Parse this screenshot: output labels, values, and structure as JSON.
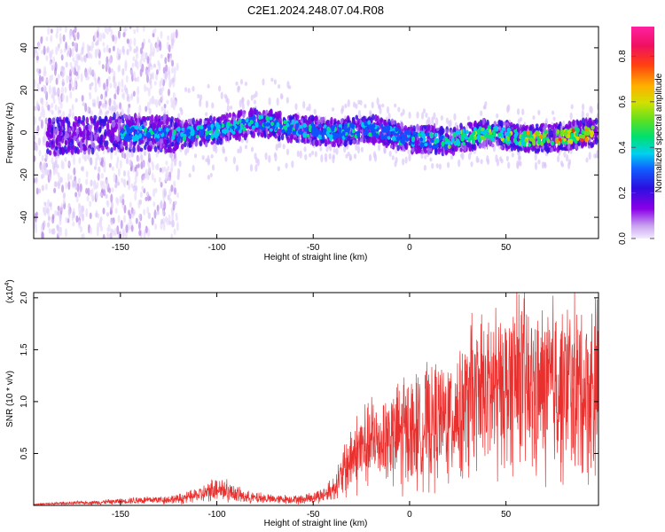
{
  "title": "C2E1.2024.248.07.04.R08",
  "chart_data": [
    {
      "type": "heatmap",
      "title": "C2E1.2024.248.07.04.R08",
      "xlabel": "Height of straight line (km)",
      "ylabel": "Frequency (Hz)",
      "xlim": [
        -195,
        98
      ],
      "ylim": [
        -50,
        50
      ],
      "x_ticks": [
        -150,
        -100,
        -50,
        0,
        50
      ],
      "x_tick_labels": [
        "-150",
        "-100",
        "-50",
        "0",
        "50"
      ],
      "y_ticks": [
        -40,
        -20,
        0,
        20,
        40
      ],
      "y_tick_labels": [
        "-40",
        "-20",
        "0",
        "20",
        "40"
      ],
      "colorbar": {
        "label": "Normalized spectral amplitude",
        "range": [
          0,
          0.93
        ],
        "ticks": [
          0.0,
          0.2,
          0.4,
          0.6,
          0.8
        ],
        "tick_labels": [
          "0.0",
          "0.2",
          "0.4",
          "0.6",
          "0.8"
        ],
        "colormap": "rainbow (white-violet to magenta)"
      },
      "ridge_center_hz": [
        {
          "x": -185,
          "y": -2
        },
        {
          "x": -150,
          "y": 0
        },
        {
          "x": -120,
          "y": -1
        },
        {
          "x": -100,
          "y": 1
        },
        {
          "x": -80,
          "y": 5
        },
        {
          "x": -60,
          "y": 2
        },
        {
          "x": -40,
          "y": 0
        },
        {
          "x": -20,
          "y": 2
        },
        {
          "x": 0,
          "y": -3
        },
        {
          "x": 20,
          "y": -4
        },
        {
          "x": 40,
          "y": 0
        },
        {
          "x": 60,
          "y": -3
        },
        {
          "x": 80,
          "y": -2
        },
        {
          "x": 95,
          "y": 0
        }
      ]
    },
    {
      "type": "line",
      "xlabel": "Height of straight line (km)",
      "ylabel": "SNR (10 * v/v)",
      "y_multiplier": "(x10",
      "y_multiplier_exp": "4",
      "y_multiplier_close": ")",
      "xlim": [
        -195,
        98
      ],
      "ylim": [
        0,
        2.05
      ],
      "x_ticks": [
        -150,
        -100,
        -50,
        0,
        50
      ],
      "x_tick_labels": [
        "-150",
        "-100",
        "-50",
        "0",
        "50"
      ],
      "y_ticks": [
        0.5,
        1.0,
        1.5,
        2.0
      ],
      "y_tick_labels": [
        "0.5",
        "1.0",
        "1.5",
        "2.0"
      ],
      "color": "#e8302e",
      "series": [
        {
          "x": [
            -195,
            -180,
            -160,
            -140,
            -120,
            -105,
            -100,
            -95,
            -85,
            -70,
            -55,
            -45,
            -40,
            -35,
            -30,
            -25,
            -20,
            -15,
            -10,
            -5,
            0,
            5,
            10,
            15,
            20,
            25,
            30,
            35,
            40,
            45,
            50,
            55,
            60,
            65,
            70,
            75,
            80,
            85,
            90,
            95
          ],
          "y": [
            0.01,
            0.02,
            0.03,
            0.05,
            0.06,
            0.12,
            0.18,
            0.14,
            0.08,
            0.06,
            0.06,
            0.1,
            0.15,
            0.3,
            0.45,
            0.55,
            0.6,
            0.62,
            0.65,
            0.7,
            0.72,
            0.75,
            0.78,
            0.8,
            0.85,
            0.9,
            1.0,
            1.05,
            1.1,
            1.12,
            1.15,
            1.2,
            1.15,
            1.1,
            1.1,
            1.15,
            1.1,
            1.15,
            1.1,
            1.12
          ]
        }
      ]
    }
  ]
}
